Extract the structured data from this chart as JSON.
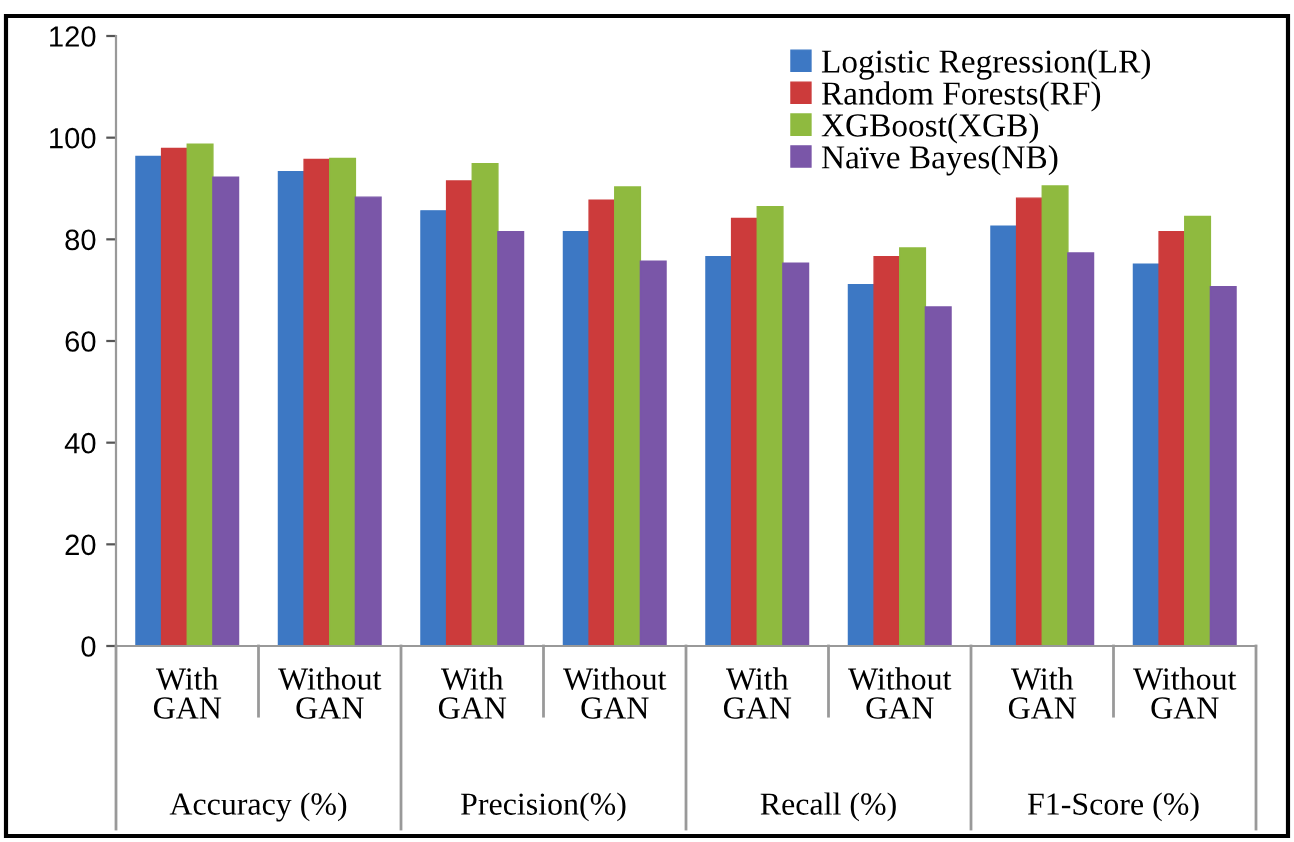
{
  "chart_data": {
    "type": "bar",
    "categories": [
      "With GAN",
      "Without GAN",
      "With GAN",
      "Without GAN",
      "With GAN",
      "Without GAN",
      "With GAN",
      "Without GAN"
    ],
    "series": [
      {
        "name": "Logistic Regression(LR)",
        "color": "#3d78c4",
        "values": [
          96.3,
          93.3,
          85.6,
          81.5,
          76.6,
          71.1,
          82.6,
          75.1
        ]
      },
      {
        "name": "Random Forests(RF)",
        "color": "#cc3b3b",
        "values": [
          97.9,
          95.7,
          91.5,
          87.7,
          84.1,
          76.6,
          88.1,
          81.5
        ]
      },
      {
        "name": "XGBoost(XGB)",
        "color": "#8fba3f",
        "values": [
          98.7,
          95.9,
          94.9,
          90.3,
          86.4,
          78.3,
          90.5,
          84.5
        ]
      },
      {
        "name": "Naïve Bayes(NB)",
        "color": "#7a56a8",
        "values": [
          92.2,
          88.3,
          81.5,
          75.7,
          75.3,
          66.7,
          77.3,
          70.7
        ]
      }
    ],
    "annotations": [
      "Accuracy (%)",
      "Precision(%)",
      "Recall (%)",
      "F1-Score (%)"
    ],
    "ylim": [
      0,
      120
    ],
    "yticks": [
      0,
      20,
      40,
      60,
      80,
      100,
      120
    ],
    "grid": false,
    "legend": "top right"
  }
}
